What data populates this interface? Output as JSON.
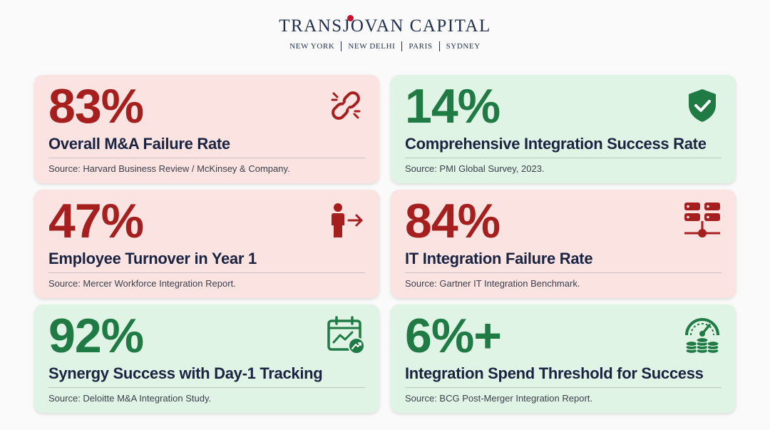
{
  "brand": {
    "title": "TRANSJOVAN CAPITAL",
    "cities": [
      "NEW YORK",
      "NEW DELHI",
      "PARIS",
      "SYDNEY"
    ],
    "accent_color": "#c8102e",
    "text_color": "#1f2d4f"
  },
  "cards": [
    {
      "stat": "83%",
      "label": "Overall M&A Failure Rate",
      "source": "Source: Harvard Business Review / McKinsey & Company.",
      "tone": "negative",
      "icon": "broken-chain-icon"
    },
    {
      "stat": "14%",
      "label": "Comprehensive Integration Success Rate",
      "source": "Source: PMI Global Survey, 2023.",
      "tone": "positive",
      "icon": "shield-check-icon"
    },
    {
      "stat": "47%",
      "label": "Employee Turnover in Year 1",
      "source": "Source: Mercer Workforce Integration Report.",
      "tone": "negative",
      "icon": "person-exit-icon"
    },
    {
      "stat": "84%",
      "label": "IT Integration Failure Rate",
      "source": "Source: Gartner IT Integration Benchmark.",
      "tone": "negative",
      "icon": "server-network-icon"
    },
    {
      "stat": "92%",
      "label": "Synergy Success with Day-1 Tracking",
      "source": "Source: Deloitte M&A Integration Study.",
      "tone": "positive",
      "icon": "calendar-trend-icon"
    },
    {
      "stat": "6%+",
      "label": "Integration Spend Threshold for Success",
      "source": "Source: BCG Post-Merger Integration Report.",
      "tone": "positive",
      "icon": "gauge-coins-icon"
    }
  ],
  "colors": {
    "negative_bg": "#fbe3e2",
    "negative_text": "#a61f1f",
    "positive_bg": "#e0f4e6",
    "positive_text": "#1f7a44",
    "label_text": "#1a2340"
  }
}
